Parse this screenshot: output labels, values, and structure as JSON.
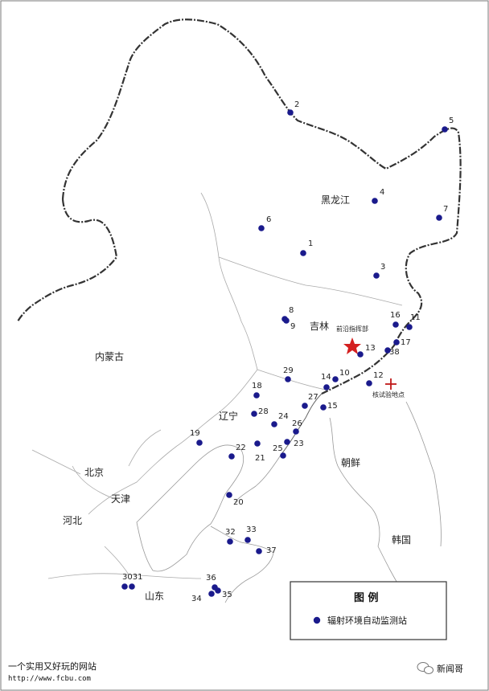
{
  "map": {
    "region_labels": [
      {
        "id": "heilongjiang",
        "text": "黑龙江"
      },
      {
        "id": "jilin",
        "text": "吉林"
      },
      {
        "id": "neimenggu",
        "text": "内蒙古"
      },
      {
        "id": "liaoning",
        "text": "辽宁"
      },
      {
        "id": "chaoxian",
        "text": "朝鲜"
      },
      {
        "id": "beijing",
        "text": "北京"
      },
      {
        "id": "tianjin",
        "text": "天津"
      },
      {
        "id": "hebei",
        "text": "河北"
      },
      {
        "id": "hanguo",
        "text": "韩国"
      },
      {
        "id": "shandong",
        "text": "山东"
      }
    ],
    "markers": [
      {
        "id": "command-post",
        "text": "前沿指挥部"
      },
      {
        "id": "test-site",
        "text": "核试验地点"
      }
    ],
    "stations": [
      "1",
      "2",
      "3",
      "4",
      "5",
      "6",
      "7",
      "8",
      "9",
      "10",
      "11",
      "12",
      "13",
      "14",
      "15",
      "16",
      "17",
      "18",
      "19",
      "20",
      "21",
      "22",
      "23",
      "24",
      "25",
      "26",
      "27",
      "28",
      "29",
      "3031",
      "32",
      "33",
      "34",
      "35",
      "36",
      "37",
      "38"
    ],
    "colors": {
      "station": "#1a1a8c",
      "star": "#d42020",
      "cross": "#c01818",
      "border": "#333333",
      "coast": "#888888"
    }
  },
  "legend": {
    "title": "图 例",
    "item": "辐射环境自动监测站"
  },
  "watermark": {
    "site_text": "一个实用又好玩的网站",
    "url": "http://www.fcbu.com",
    "brand": "新闻哥",
    "brand_icon": "wechat-icon"
  }
}
